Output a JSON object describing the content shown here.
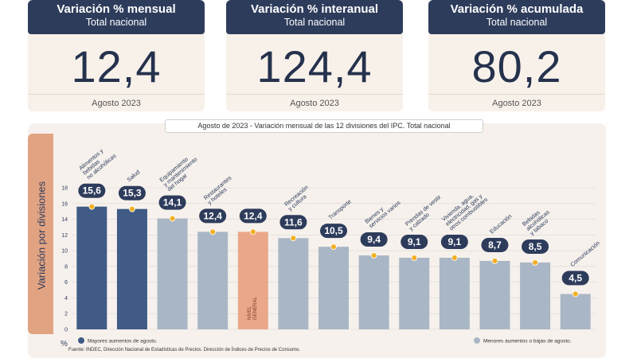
{
  "kpis": [
    {
      "title": "Variación % mensual",
      "subtitle": "Total nacional",
      "value": "12,4",
      "date": "Agosto 2023"
    },
    {
      "title": "Variación % interanual",
      "subtitle": "Total nacional",
      "value": "124,4",
      "date": "Agosto 2023"
    },
    {
      "title": "Variación % acumulada",
      "subtitle": "Total nacional",
      "value": "80,2",
      "date": "Agosto 2023"
    }
  ],
  "chart_data": {
    "type": "bar",
    "title": "Agosto de 2023 - Variación mensual de las 12 divisiones del IPC. Total nacional",
    "ylabel": "Variación por divisiones",
    "yunit": "%",
    "ylim": [
      0,
      18
    ],
    "yticks": [
      "0",
      "2",
      "4",
      "6",
      "8",
      "10",
      "12",
      "14",
      "16",
      "18"
    ],
    "categories": [
      [
        "Alimentos y",
        "bebidas",
        "no alcohólicas"
      ],
      [
        "Salud"
      ],
      [
        "Equipamiento",
        "y mantenimiento",
        "del hogar"
      ],
      [
        "Restaurantes",
        "y hoteles"
      ],
      [],
      [
        "Recreación",
        "y cultura"
      ],
      [
        "Transporte"
      ],
      [
        "Bienes y",
        "servicios varios"
      ],
      [
        "Prendas de vestir",
        "y calzado"
      ],
      [
        "Vivienda, agua,",
        "electricidad, gas y",
        "otros combustibles"
      ],
      [
        "Educación"
      ],
      [
        "Bebidas",
        "alcohólicas",
        "y tabaco"
      ],
      [
        "Comunicación"
      ]
    ],
    "values": [
      15.6,
      15.3,
      14.1,
      12.4,
      12.4,
      11.6,
      10.5,
      9.4,
      9.1,
      9.1,
      8.7,
      8.5,
      4.5
    ],
    "value_labels": [
      "15,6",
      "15,3",
      "14,1",
      "12,4",
      "12,4",
      "11,6",
      "10,5",
      "9,4",
      "9,1",
      "9,1",
      "8,7",
      "8,5",
      "4,5"
    ],
    "groups": [
      "mayores",
      "mayores",
      "menores",
      "menores",
      "general",
      "menores",
      "menores",
      "menores",
      "menores",
      "menores",
      "menores",
      "menores",
      "menores"
    ],
    "general_bar_text": [
      "NIVEL",
      "GENERAL"
    ],
    "legend": {
      "mayores": "Mayores aumentos de agosto.",
      "menores": "Menores aumentos o bajas de agosto."
    },
    "colors": {
      "mayores": "#3f5b86",
      "menores": "#a9b6c5",
      "general": "#eaa78a",
      "marker": "#f2b024",
      "badge": "#2e3c5c",
      "grid": "#d9d9d9"
    }
  },
  "source": "Fuente: INDEC, Dirección Nacional de Estadísticas de Precios. Dirección de Índices de Precios de Consumo."
}
